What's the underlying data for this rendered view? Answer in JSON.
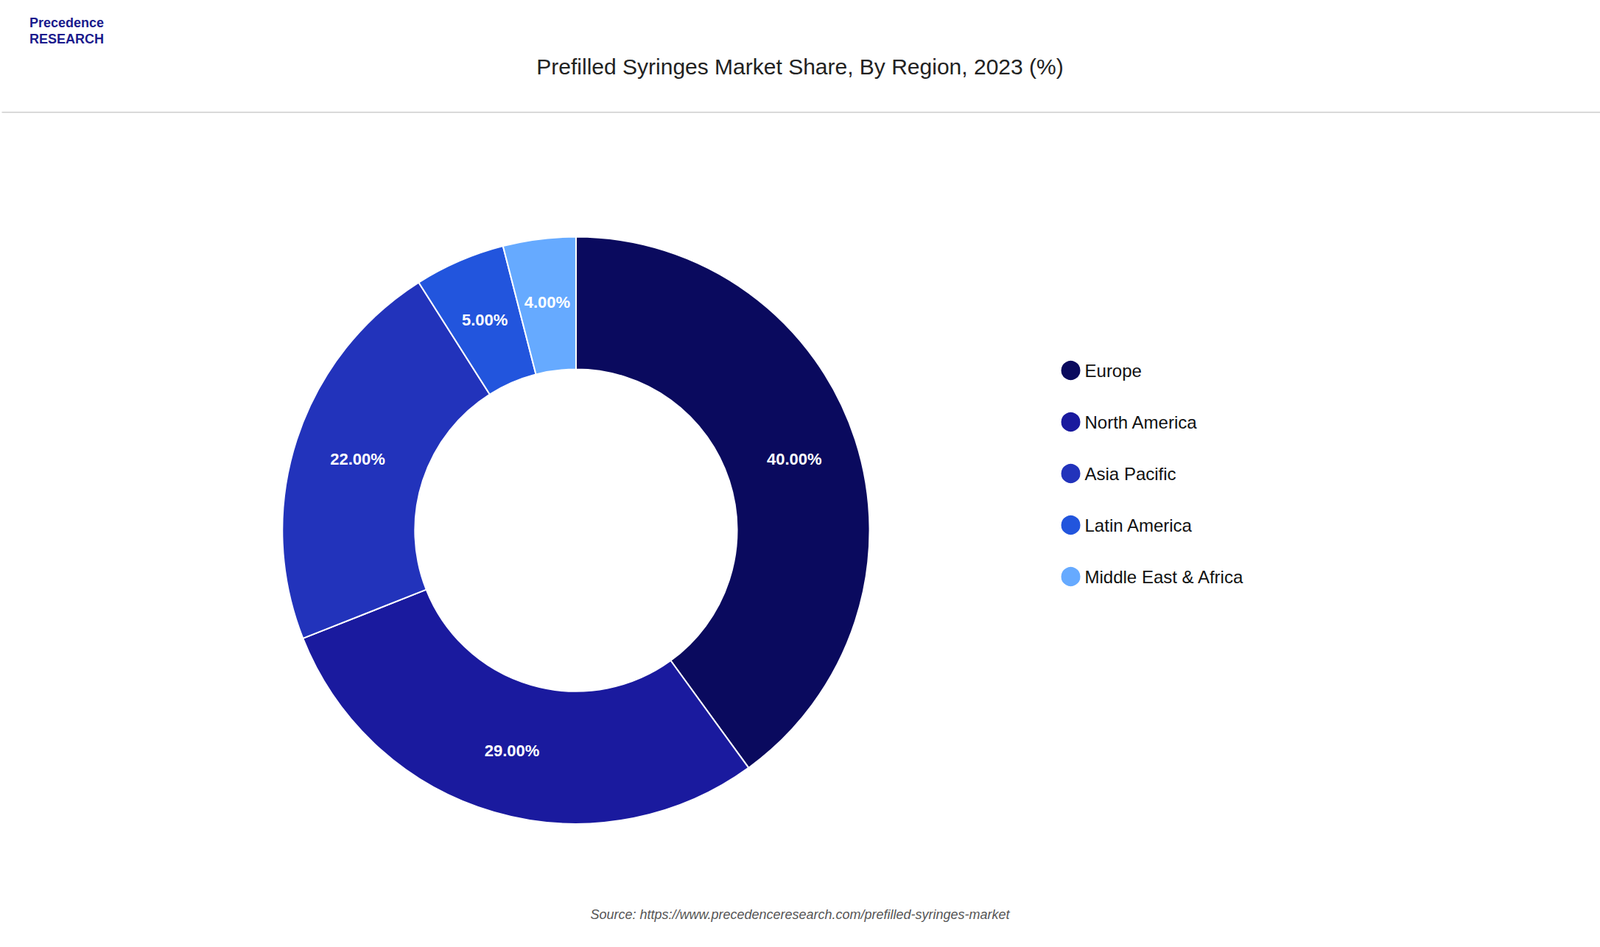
{
  "chart_data": {
    "type": "pie",
    "title": "Prefilled Syringes Market Share, By Region, 2023 (%)",
    "categories": [
      "Europe",
      "North America",
      "Asia Pacific",
      "Latin America",
      "Middle East & Africa"
    ],
    "values": [
      40.0,
      29.0,
      22.0,
      5.0,
      4.0
    ],
    "value_labels": [
      "40.00%",
      "29.00%",
      "22.00%",
      "5.00%",
      "4.00%"
    ],
    "colors": [
      "#0a0a5e",
      "#1a1a9e",
      "#2233bb",
      "#2255dd",
      "#66aaff"
    ],
    "data_labels": true,
    "legend": "right",
    "source": "Source: https://www.precedenceresearch.com/prefilled-syringes-market",
    "annotations": [
      "Precedence\nRESEARCH"
    ]
  }
}
